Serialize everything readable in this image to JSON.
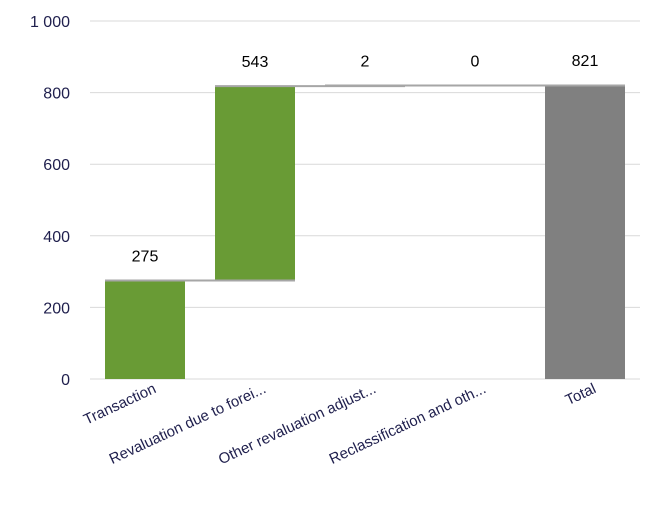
{
  "chart_data": {
    "type": "waterfall",
    "title": "",
    "xlabel": "",
    "ylabel": "",
    "ylim": [
      0,
      1000
    ],
    "yticks": [
      0,
      200,
      400,
      600,
      800,
      1000
    ],
    "ytick_labels": [
      "0",
      "200",
      "400",
      "600",
      "800",
      "1 000"
    ],
    "grid": true,
    "categories": [
      "Transaction",
      "Revaluation due to forei...",
      "Other revaluation adjust...",
      "Reclassification and oth...",
      "Total"
    ],
    "values": [
      275,
      543,
      2,
      0,
      821
    ],
    "data_labels": [
      "275",
      "543",
      "2",
      "0",
      "821"
    ],
    "kinds": [
      "delta",
      "delta",
      "delta",
      "delta",
      "total"
    ],
    "colors": {
      "increase": "#699b35",
      "total": "#808080",
      "connector": "#a6a6a6",
      "grid": "#d9d9d9",
      "axis_text": "#1f1f4d"
    }
  }
}
